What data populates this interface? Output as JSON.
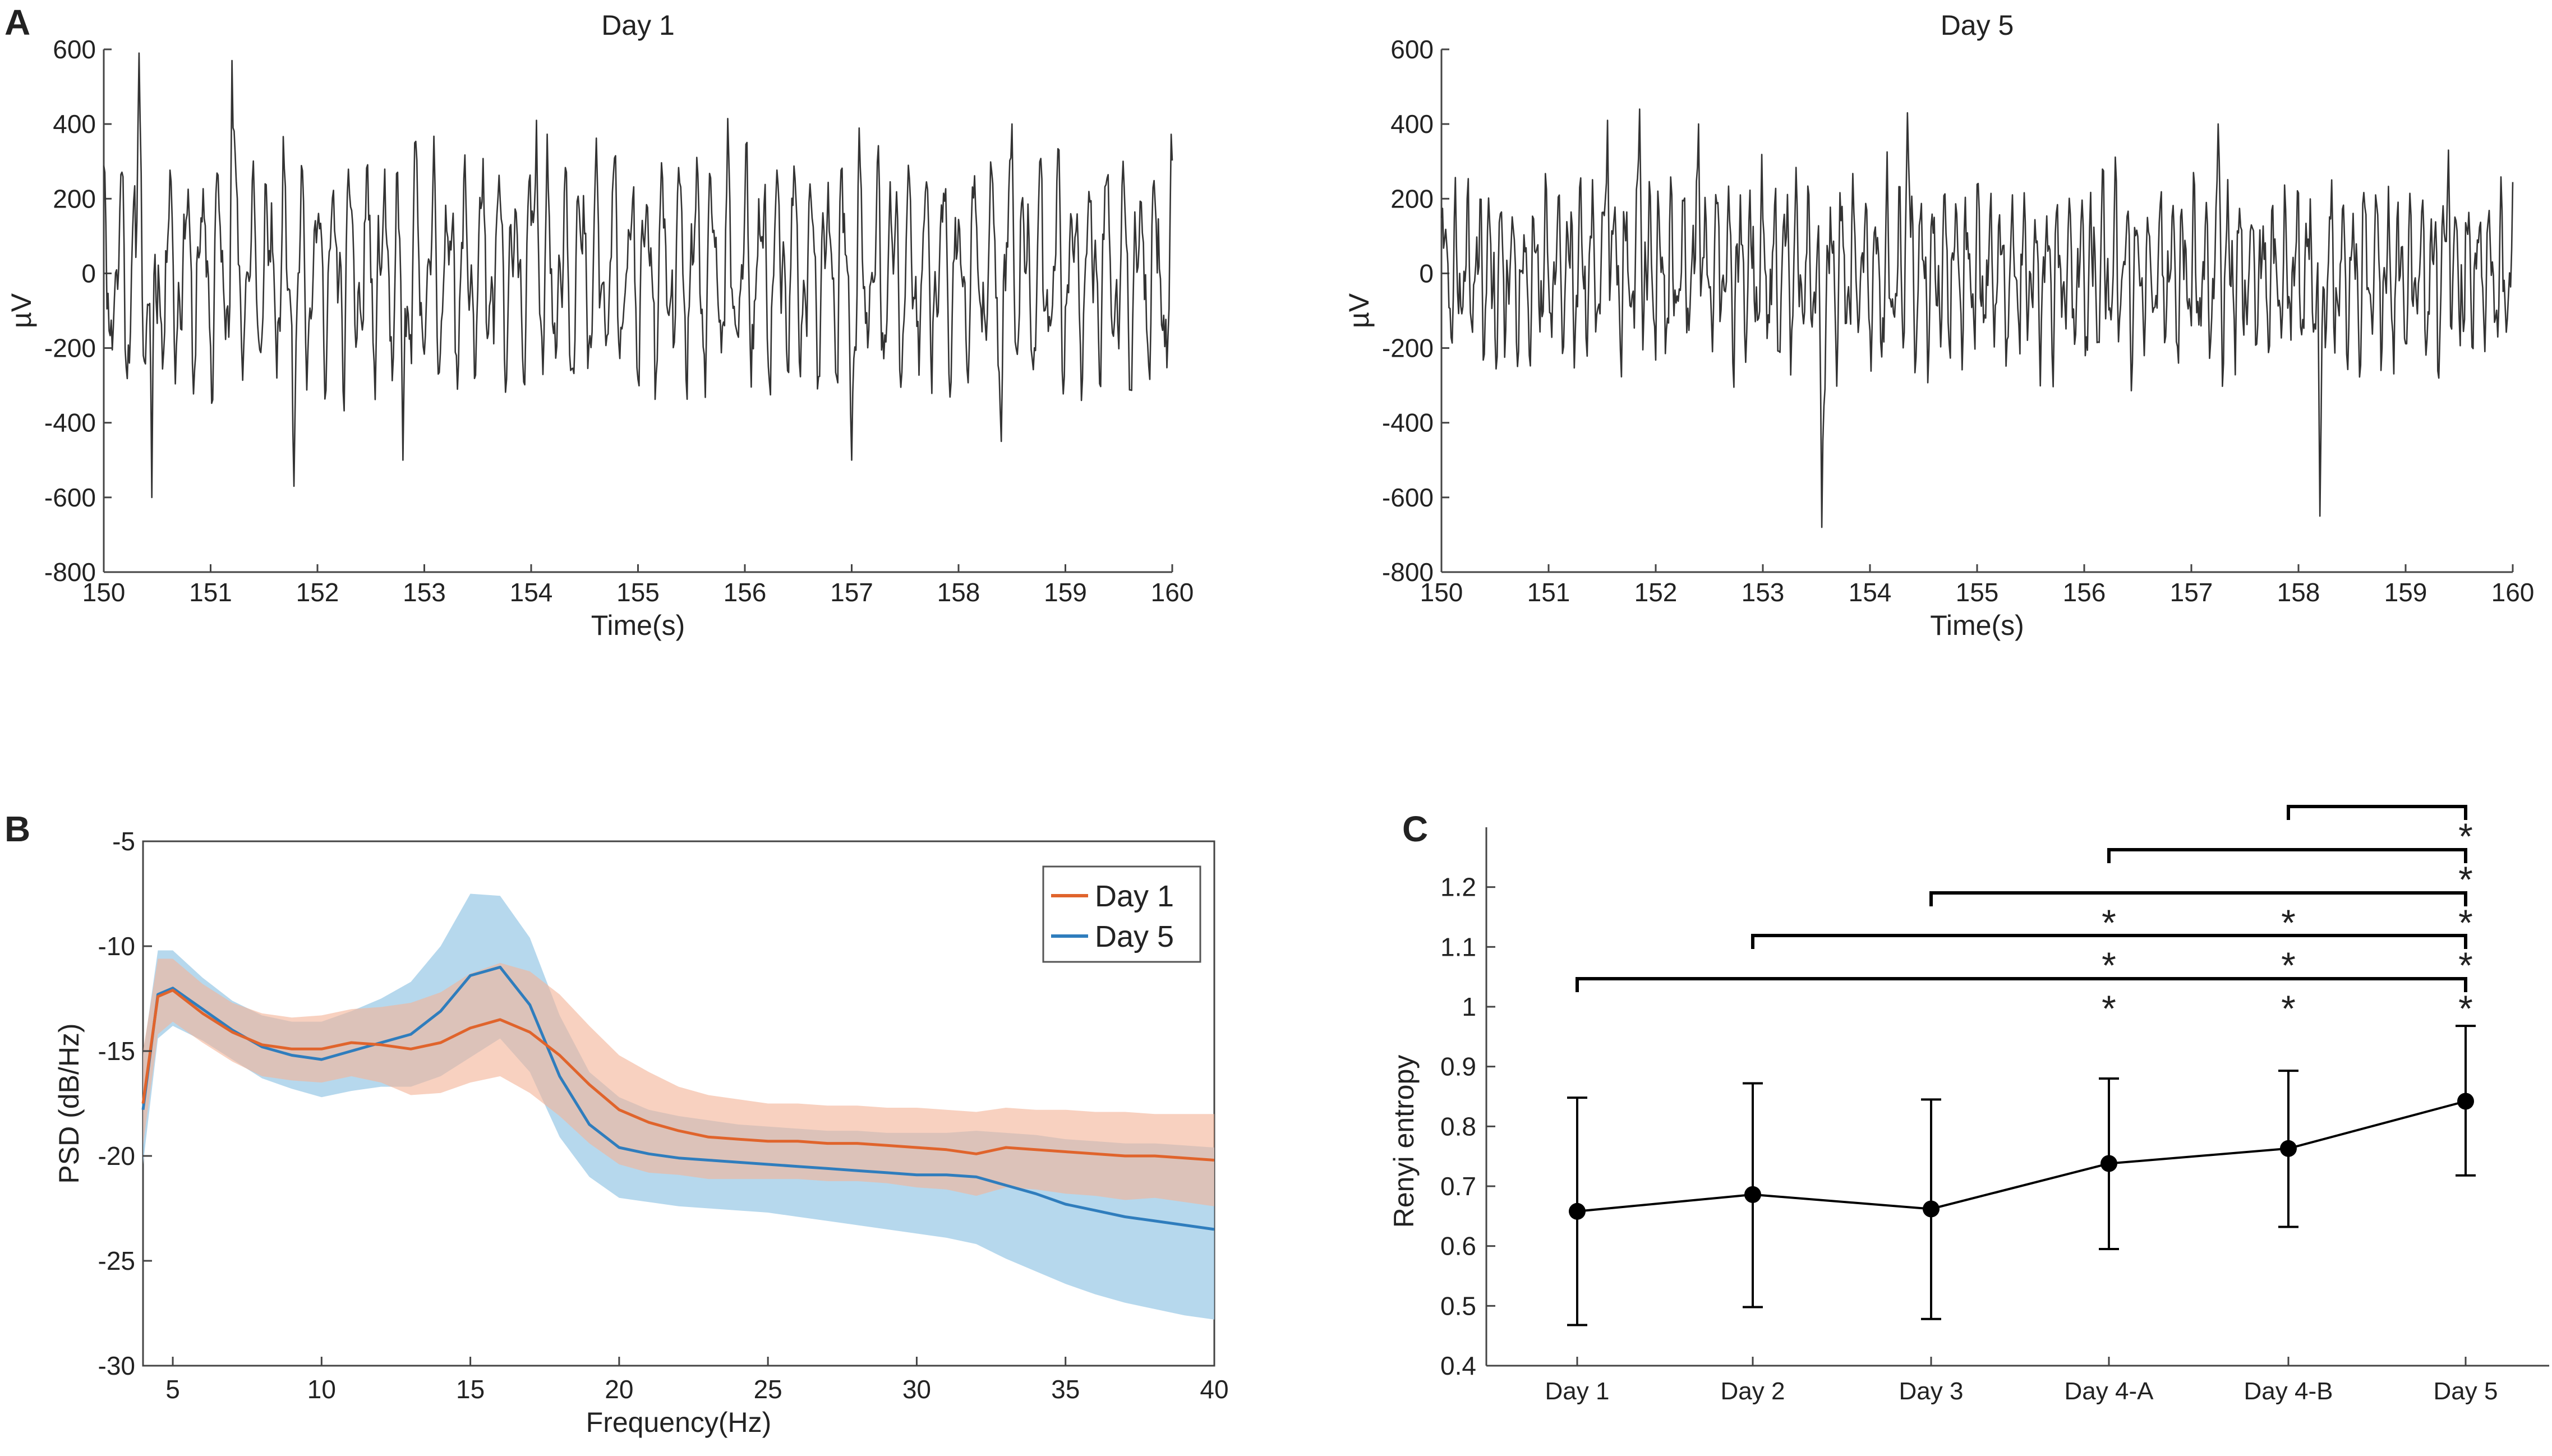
{
  "panels": {
    "a": "A",
    "b": "B",
    "c": "C"
  },
  "chart_data": [
    {
      "type": "line",
      "title": "Day 1",
      "xlabel": "Time(s)",
      "ylabel": "µV",
      "xlim": [
        150,
        160
      ],
      "ylim": [
        -800,
        600
      ],
      "xticks": [
        "150",
        "151",
        "152",
        "153",
        "154",
        "155",
        "156",
        "157",
        "158",
        "159",
        "160"
      ],
      "yticks": [
        "600",
        "400",
        "200",
        "0",
        "-200",
        "-400",
        "-600",
        "-800"
      ],
      "series": [
        {
          "name": "EEG Day 1",
          "color": "#333333",
          "sampling": "approx 0.01 s; oscillatory EEG trace, amplitude mostly within ±400 µV, peaks to ~590 / troughs to ~-600",
          "notable_points": [
            [
              150.33,
              590
            ],
            [
              150.45,
              -600
            ],
            [
              151.2,
              570
            ],
            [
              151.78,
              -570
            ],
            [
              152.8,
              -500
            ],
            [
              154.05,
              410
            ],
            [
              157.0,
              -500
            ],
            [
              158.5,
              400
            ],
            [
              158.4,
              -450
            ]
          ]
        }
      ]
    },
    {
      "type": "line",
      "title": "Day 5",
      "xlabel": "Time(s)",
      "ylabel": "µV",
      "xlim": [
        150,
        160
      ],
      "ylim": [
        -800,
        600
      ],
      "xticks": [
        "150",
        "151",
        "152",
        "153",
        "154",
        "155",
        "156",
        "157",
        "158",
        "159",
        "160"
      ],
      "yticks": [
        "600",
        "400",
        "200",
        "0",
        "-200",
        "-400",
        "-600",
        "-800"
      ],
      "series": [
        {
          "name": "EEG Day 5",
          "color": "#333333",
          "sampling": "approx 0.01 s; higher-frequency EEG trace, amplitude mostly within ±300 µV",
          "notable_points": [
            [
              151.55,
              410
            ],
            [
              151.85,
              440
            ],
            [
              152.4,
              400
            ],
            [
              153.55,
              -680
            ],
            [
              154.35,
              430
            ],
            [
              157.25,
              400
            ],
            [
              158.2,
              -650
            ],
            [
              159.4,
              330
            ]
          ]
        }
      ]
    },
    {
      "type": "area",
      "xlabel": "Frequency(Hz)",
      "ylabel": "PSD (dB/Hz)",
      "xlim": [
        4,
        40
      ],
      "ylim": [
        -30,
        -5
      ],
      "xticks": [
        "5",
        "10",
        "15",
        "20",
        "25",
        "30",
        "35",
        "40"
      ],
      "yticks": [
        "-5",
        "-10",
        "-15",
        "-20",
        "-25",
        "-30"
      ],
      "legend_position": "top-right",
      "x": [
        4,
        4.5,
        5,
        6,
        7,
        8,
        9,
        10,
        11,
        12,
        13,
        14,
        15,
        16,
        17,
        18,
        19,
        20,
        21,
        22,
        23,
        24,
        25,
        26,
        27,
        28,
        29,
        30,
        31,
        32,
        33,
        34,
        35,
        36,
        37,
        38,
        39,
        40
      ],
      "series": [
        {
          "name": "Day 1",
          "color": "#e0642c",
          "band_color": "#f4b49a",
          "mean": [
            -17.5,
            -12.4,
            -12.1,
            -13.2,
            -14.1,
            -14.7,
            -14.9,
            -14.9,
            -14.6,
            -14.7,
            -14.9,
            -14.6,
            -13.9,
            -13.5,
            -14.1,
            -15.2,
            -16.6,
            -17.8,
            -18.4,
            -18.8,
            -19.1,
            -19.2,
            -19.3,
            -19.3,
            -19.4,
            -19.4,
            -19.5,
            -19.6,
            -19.7,
            -19.9,
            -19.6,
            -19.7,
            -19.8,
            -19.9,
            -20.0,
            -20.0,
            -20.1,
            -20.2
          ],
          "upper": [
            -15.0,
            -10.6,
            -10.6,
            -11.8,
            -12.7,
            -13.2,
            -13.4,
            -13.3,
            -13.0,
            -12.9,
            -12.7,
            -12.2,
            -11.3,
            -10.8,
            -11.2,
            -12.3,
            -13.8,
            -15.2,
            -16.0,
            -16.7,
            -17.1,
            -17.3,
            -17.5,
            -17.5,
            -17.6,
            -17.6,
            -17.7,
            -17.7,
            -17.8,
            -17.9,
            -17.7,
            -17.8,
            -17.8,
            -17.9,
            -17.9,
            -18.0,
            -18.0,
            -18.0
          ],
          "lower": [
            -19.5,
            -14.2,
            -13.6,
            -14.6,
            -15.5,
            -16.2,
            -16.4,
            -16.5,
            -16.2,
            -16.5,
            -17.1,
            -17.0,
            -16.5,
            -16.2,
            -17.0,
            -18.1,
            -19.4,
            -20.4,
            -20.8,
            -20.9,
            -21.1,
            -21.1,
            -21.1,
            -21.1,
            -21.2,
            -21.2,
            -21.3,
            -21.5,
            -21.6,
            -21.9,
            -21.5,
            -21.6,
            -21.8,
            -21.9,
            -22.1,
            -22.0,
            -22.2,
            -22.4
          ]
        },
        {
          "name": "Day 5",
          "color": "#2f7dbd",
          "band_color": "#a9d1ea",
          "mean": [
            -17.8,
            -12.3,
            -12.0,
            -13.0,
            -14.0,
            -14.8,
            -15.2,
            -15.4,
            -15.0,
            -14.6,
            -14.2,
            -13.1,
            -11.4,
            -11.0,
            -12.8,
            -16.2,
            -18.5,
            -19.6,
            -19.9,
            -20.1,
            -20.2,
            -20.3,
            -20.4,
            -20.5,
            -20.6,
            -20.7,
            -20.8,
            -20.9,
            -20.9,
            -21.0,
            -21.4,
            -21.8,
            -22.3,
            -22.6,
            -22.9,
            -23.1,
            -23.3,
            -23.5
          ],
          "upper": [
            -15.2,
            -10.2,
            -10.2,
            -11.5,
            -12.6,
            -13.3,
            -13.6,
            -13.6,
            -13.1,
            -12.5,
            -11.7,
            -10.0,
            -7.5,
            -7.6,
            -9.6,
            -13.3,
            -16.0,
            -17.2,
            -17.8,
            -18.1,
            -18.3,
            -18.5,
            -18.6,
            -18.7,
            -18.8,
            -18.8,
            -18.9,
            -18.9,
            -18.9,
            -18.8,
            -18.9,
            -19.0,
            -19.2,
            -19.3,
            -19.4,
            -19.4,
            -19.5,
            -19.6
          ],
          "lower": [
            -20.4,
            -14.4,
            -13.8,
            -14.5,
            -15.4,
            -16.3,
            -16.8,
            -17.2,
            -16.9,
            -16.7,
            -16.7,
            -16.2,
            -15.3,
            -14.4,
            -16.0,
            -19.1,
            -21.0,
            -22.0,
            -22.2,
            -22.4,
            -22.5,
            -22.6,
            -22.7,
            -22.9,
            -23.1,
            -23.3,
            -23.5,
            -23.7,
            -23.9,
            -24.2,
            -24.9,
            -25.5,
            -26.1,
            -26.6,
            -27.0,
            -27.3,
            -27.6,
            -27.8
          ]
        }
      ]
    },
    {
      "type": "line",
      "ylabel": "Renyi entropy",
      "xlabel": "",
      "ylim": [
        0.4,
        1.3
      ],
      "yticks": [
        "0.4",
        "0.5",
        "0.6",
        "0.7",
        "0.8",
        "0.9",
        "1",
        "1.1",
        "1.2"
      ],
      "categories": [
        "Day 1",
        "Day 2",
        "Day 3",
        "Day 4-A",
        "Day 4-B",
        "Day 5"
      ],
      "series": [
        {
          "name": "Renyi entropy",
          "color": "#000000",
          "values": [
            0.658,
            0.686,
            0.662,
            0.738,
            0.763,
            0.842
          ],
          "error_low": [
            0.468,
            0.498,
            0.478,
            0.595,
            0.632,
            0.718
          ],
          "error_high": [
            0.848,
            0.872,
            0.845,
            0.88,
            0.893,
            0.968
          ]
        }
      ],
      "significance_marker": "*",
      "brackets": [
        {
          "from": "Day 1",
          "to": "Day 5",
          "stars_at": [
            "Day 4-A",
            "Day 4-B",
            "Day 5"
          ]
        },
        {
          "from": "Day 2",
          "to": "Day 5",
          "stars_at": [
            "Day 4-A",
            "Day 4-B",
            "Day 5"
          ]
        },
        {
          "from": "Day 3",
          "to": "Day 5",
          "stars_at": [
            "Day 4-A",
            "Day 4-B",
            "Day 5"
          ]
        },
        {
          "from": "Day 4-A",
          "to": "Day 5",
          "stars_at": [
            "Day 5"
          ]
        },
        {
          "from": "Day 4-B",
          "to": "Day 5",
          "stars_at": [
            "Day 5"
          ]
        }
      ]
    }
  ]
}
